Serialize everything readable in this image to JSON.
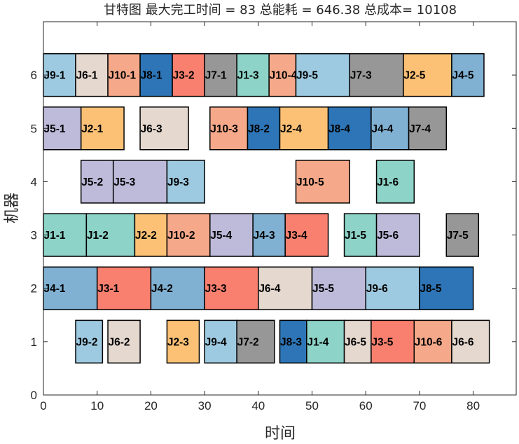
{
  "chart_data": {
    "type": "gantt",
    "title": "甘特图 最大完工时间 = 83 总能耗 = 646.38 总成本= 10108",
    "xlabel": "时间",
    "ylabel": "机器",
    "xlim": [
      0,
      88
    ],
    "ylim": [
      0,
      7
    ],
    "xticks": [
      "0",
      "10",
      "20",
      "30",
      "40",
      "50",
      "60",
      "70",
      "80"
    ],
    "yticks": [
      "0",
      "1",
      "2",
      "3",
      "4",
      "5",
      "6"
    ],
    "grid": false,
    "job_colors": {
      "J1": "#8dd3c7",
      "J2": "#fdc176",
      "J3": "#f9806f",
      "J4": "#80b1d3",
      "J5": "#bebada",
      "J6": "#e5d8cf",
      "J7": "#979797",
      "J8": "#2d75b6",
      "J9": "#9ecae1",
      "J10": "#f6a98a"
    },
    "tasks": [
      {
        "machine": 6,
        "job": "J9",
        "label": "J9-1",
        "start": 0,
        "end": 6
      },
      {
        "machine": 6,
        "job": "J6",
        "label": "J6-1",
        "start": 6,
        "end": 12
      },
      {
        "machine": 6,
        "job": "J10",
        "label": "J10-1",
        "start": 12,
        "end": 18
      },
      {
        "machine": 6,
        "job": "J8",
        "label": "J8-1",
        "start": 18,
        "end": 24
      },
      {
        "machine": 6,
        "job": "J3",
        "label": "J3-2",
        "start": 24,
        "end": 30
      },
      {
        "machine": 6,
        "job": "J7",
        "label": "J7-1",
        "start": 30,
        "end": 36
      },
      {
        "machine": 6,
        "job": "J1",
        "label": "J1-3",
        "start": 36,
        "end": 42
      },
      {
        "machine": 6,
        "job": "J10",
        "label": "J10-4",
        "start": 42,
        "end": 47
      },
      {
        "machine": 6,
        "job": "J9",
        "label": "J9-5",
        "start": 47,
        "end": 57
      },
      {
        "machine": 6,
        "job": "J7",
        "label": "J7-3",
        "start": 57,
        "end": 67
      },
      {
        "machine": 6,
        "job": "J2",
        "label": "J2-5",
        "start": 67,
        "end": 76
      },
      {
        "machine": 6,
        "job": "J4",
        "label": "J4-5",
        "start": 76,
        "end": 82
      },
      {
        "machine": 5,
        "job": "J5",
        "label": "J5-1",
        "start": 0,
        "end": 7
      },
      {
        "machine": 5,
        "job": "J2",
        "label": "J2-1",
        "start": 7,
        "end": 15
      },
      {
        "machine": 5,
        "job": "J6",
        "label": "J6-3",
        "start": 18,
        "end": 27
      },
      {
        "machine": 5,
        "job": "J10",
        "label": "J10-3",
        "start": 31,
        "end": 38
      },
      {
        "machine": 5,
        "job": "J8",
        "label": "J8-2",
        "start": 38,
        "end": 44
      },
      {
        "machine": 5,
        "job": "J2",
        "label": "J2-4",
        "start": 44,
        "end": 53
      },
      {
        "machine": 5,
        "job": "J8",
        "label": "J8-4",
        "start": 53,
        "end": 61
      },
      {
        "machine": 5,
        "job": "J4",
        "label": "J4-4",
        "start": 61,
        "end": 68
      },
      {
        "machine": 5,
        "job": "J7",
        "label": "J7-4",
        "start": 68,
        "end": 75
      },
      {
        "machine": 4,
        "job": "J5",
        "label": "J5-2",
        "start": 7,
        "end": 13
      },
      {
        "machine": 4,
        "job": "J5",
        "label": "J5-3",
        "start": 13,
        "end": 23
      },
      {
        "machine": 4,
        "job": "J9",
        "label": "J9-3",
        "start": 23,
        "end": 30
      },
      {
        "machine": 4,
        "job": "J10",
        "label": "J10-5",
        "start": 47,
        "end": 57
      },
      {
        "machine": 4,
        "job": "J1",
        "label": "J1-6",
        "start": 62,
        "end": 69
      },
      {
        "machine": 3,
        "job": "J1",
        "label": "J1-1",
        "start": 0,
        "end": 8
      },
      {
        "machine": 3,
        "job": "J1",
        "label": "J1-2",
        "start": 8,
        "end": 17
      },
      {
        "machine": 3,
        "job": "J2",
        "label": "J2-2",
        "start": 17,
        "end": 23
      },
      {
        "machine": 3,
        "job": "J10",
        "label": "J10-2",
        "start": 23,
        "end": 31
      },
      {
        "machine": 3,
        "job": "J5",
        "label": "J5-4",
        "start": 31,
        "end": 39
      },
      {
        "machine": 3,
        "job": "J4",
        "label": "J4-3",
        "start": 39,
        "end": 45
      },
      {
        "machine": 3,
        "job": "J3",
        "label": "J3-4",
        "start": 45,
        "end": 53
      },
      {
        "machine": 3,
        "job": "J1",
        "label": "J1-5",
        "start": 56,
        "end": 62
      },
      {
        "machine": 3,
        "job": "J5",
        "label": "J5-6",
        "start": 62,
        "end": 70
      },
      {
        "machine": 3,
        "job": "J7",
        "label": "J7-5",
        "start": 75,
        "end": 81
      },
      {
        "machine": 2,
        "job": "J4",
        "label": "J4-1",
        "start": 0,
        "end": 10
      },
      {
        "machine": 2,
        "job": "J3",
        "label": "J3-1",
        "start": 10,
        "end": 20
      },
      {
        "machine": 2,
        "job": "J4",
        "label": "J4-2",
        "start": 20,
        "end": 30
      },
      {
        "machine": 2,
        "job": "J3",
        "label": "J3-3",
        "start": 30,
        "end": 40
      },
      {
        "machine": 2,
        "job": "J6",
        "label": "J6-4",
        "start": 40,
        "end": 50
      },
      {
        "machine": 2,
        "job": "J5",
        "label": "J5-5",
        "start": 50,
        "end": 60
      },
      {
        "machine": 2,
        "job": "J9",
        "label": "J9-6",
        "start": 60,
        "end": 70
      },
      {
        "machine": 2,
        "job": "J8",
        "label": "J8-5",
        "start": 70,
        "end": 80
      },
      {
        "machine": 1,
        "job": "J9",
        "label": "J9-2",
        "start": 6,
        "end": 11
      },
      {
        "machine": 1,
        "job": "J6",
        "label": "J6-2",
        "start": 12,
        "end": 18
      },
      {
        "machine": 1,
        "job": "J2",
        "label": "J2-3",
        "start": 23,
        "end": 29
      },
      {
        "machine": 1,
        "job": "J9",
        "label": "J9-4",
        "start": 30,
        "end": 36
      },
      {
        "machine": 1,
        "job": "J7",
        "label": "J7-2",
        "start": 36,
        "end": 43
      },
      {
        "machine": 1,
        "job": "J8",
        "label": "J8-3",
        "start": 44,
        "end": 49
      },
      {
        "machine": 1,
        "job": "J1",
        "label": "J1-4",
        "start": 49,
        "end": 56
      },
      {
        "machine": 1,
        "job": "J6",
        "label": "J6-5",
        "start": 56,
        "end": 61
      },
      {
        "machine": 1,
        "job": "J3",
        "label": "J3-5",
        "start": 61,
        "end": 69
      },
      {
        "machine": 1,
        "job": "J10",
        "label": "J10-6",
        "start": 69,
        "end": 76
      },
      {
        "machine": 1,
        "job": "J6",
        "label": "J6-6",
        "start": 76,
        "end": 83
      }
    ]
  }
}
